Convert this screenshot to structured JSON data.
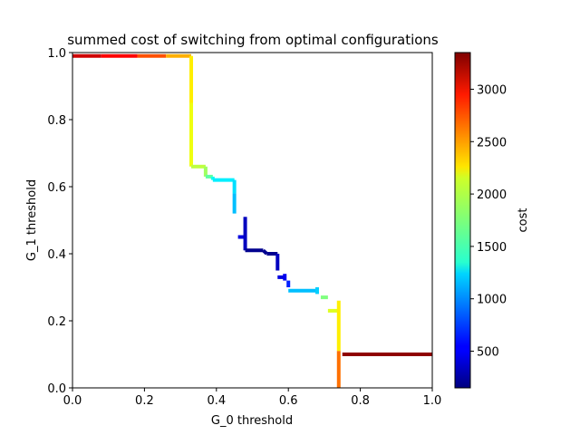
{
  "chart_data": {
    "type": "line",
    "title": "summed cost of switching from optimal configurations",
    "xlabel": "G_0 threshold",
    "ylabel": "G_1 threshold",
    "xlim": [
      0,
      1
    ],
    "ylim": [
      0,
      1
    ],
    "xticks": [
      "0.0",
      "0.2",
      "0.4",
      "0.6",
      "0.8",
      "1.0"
    ],
    "yticks": [
      "0.0",
      "0.2",
      "0.4",
      "0.6",
      "0.8",
      "1.0"
    ],
    "grid": false,
    "colorbar": {
      "label": "cost",
      "colormap": "jet",
      "min": 150,
      "max": 3350,
      "ticks": [
        "500",
        "1000",
        "1500",
        "2000",
        "2500",
        "3000"
      ]
    },
    "segments": [
      {
        "x": [
          0.0,
          0.08
        ],
        "y": [
          0.99,
          0.99
        ],
        "cost": 3100
      },
      {
        "x": [
          0.08,
          0.18
        ],
        "y": [
          0.99,
          0.99
        ],
        "cost": 2950
      },
      {
        "x": [
          0.18,
          0.26
        ],
        "y": [
          0.99,
          0.99
        ],
        "cost": 2700
      },
      {
        "x": [
          0.26,
          0.33
        ],
        "y": [
          0.99,
          0.99
        ],
        "cost": 2400
      },
      {
        "x": [
          0.33,
          0.33
        ],
        "y": [
          0.99,
          0.85
        ],
        "cost": 2200
      },
      {
        "x": [
          0.33,
          0.33
        ],
        "y": [
          0.85,
          0.66
        ],
        "cost": 2100
      },
      {
        "x": [
          0.33,
          0.37
        ],
        "y": [
          0.66,
          0.66
        ],
        "cost": 1950
      },
      {
        "x": [
          0.37,
          0.37
        ],
        "y": [
          0.66,
          0.63
        ],
        "cost": 1850
      },
      {
        "x": [
          0.37,
          0.39
        ],
        "y": [
          0.63,
          0.63
        ],
        "cost": 1650
      },
      {
        "x": [
          0.39,
          0.39
        ],
        "y": [
          0.63,
          0.62
        ],
        "cost": 1400
      },
      {
        "x": [
          0.39,
          0.45
        ],
        "y": [
          0.62,
          0.62
        ],
        "cost": 1300
      },
      {
        "x": [
          0.45,
          0.45
        ],
        "y": [
          0.62,
          0.58
        ],
        "cost": 1250
      },
      {
        "x": [
          0.45,
          0.45
        ],
        "y": [
          0.58,
          0.52
        ],
        "cost": 1150
      },
      {
        "x": [
          0.46,
          0.48
        ],
        "y": [
          0.45,
          0.45
        ],
        "cost": 450
      },
      {
        "x": [
          0.48,
          0.48
        ],
        "y": [
          0.51,
          0.41
        ],
        "cost": 350
      },
      {
        "x": [
          0.48,
          0.53
        ],
        "y": [
          0.41,
          0.41
        ],
        "cost": 200
      },
      {
        "x": [
          0.53,
          0.54
        ],
        "y": [
          0.41,
          0.4
        ],
        "cost": 200
      },
      {
        "x": [
          0.54,
          0.57
        ],
        "y": [
          0.4,
          0.4
        ],
        "cost": 200
      },
      {
        "x": [
          0.57,
          0.57
        ],
        "y": [
          0.4,
          0.35
        ],
        "cost": 350
      },
      {
        "x": [
          0.57,
          0.59
        ],
        "y": [
          0.33,
          0.33
        ],
        "cost": 450
      },
      {
        "x": [
          0.59,
          0.59
        ],
        "y": [
          0.34,
          0.32
        ],
        "cost": 500
      },
      {
        "x": [
          0.6,
          0.6
        ],
        "y": [
          0.32,
          0.3
        ],
        "cost": 650
      },
      {
        "x": [
          0.6,
          0.68
        ],
        "y": [
          0.29,
          0.29
        ],
        "cost": 1150
      },
      {
        "x": [
          0.68,
          0.68
        ],
        "y": [
          0.3,
          0.28
        ],
        "cost": 1200
      },
      {
        "x": [
          0.69,
          0.71
        ],
        "y": [
          0.27,
          0.27
        ],
        "cost": 1750
      },
      {
        "x": [
          0.71,
          0.74
        ],
        "y": [
          0.23,
          0.23
        ],
        "cost": 2050
      },
      {
        "x": [
          0.74,
          0.74
        ],
        "y": [
          0.26,
          0.11
        ],
        "cost": 2200
      },
      {
        "x": [
          0.74,
          0.74
        ],
        "y": [
          0.11,
          0.0
        ],
        "cost": 2600
      },
      {
        "x": [
          0.75,
          1.0
        ],
        "y": [
          0.1,
          0.1
        ],
        "cost": 3300
      }
    ]
  }
}
